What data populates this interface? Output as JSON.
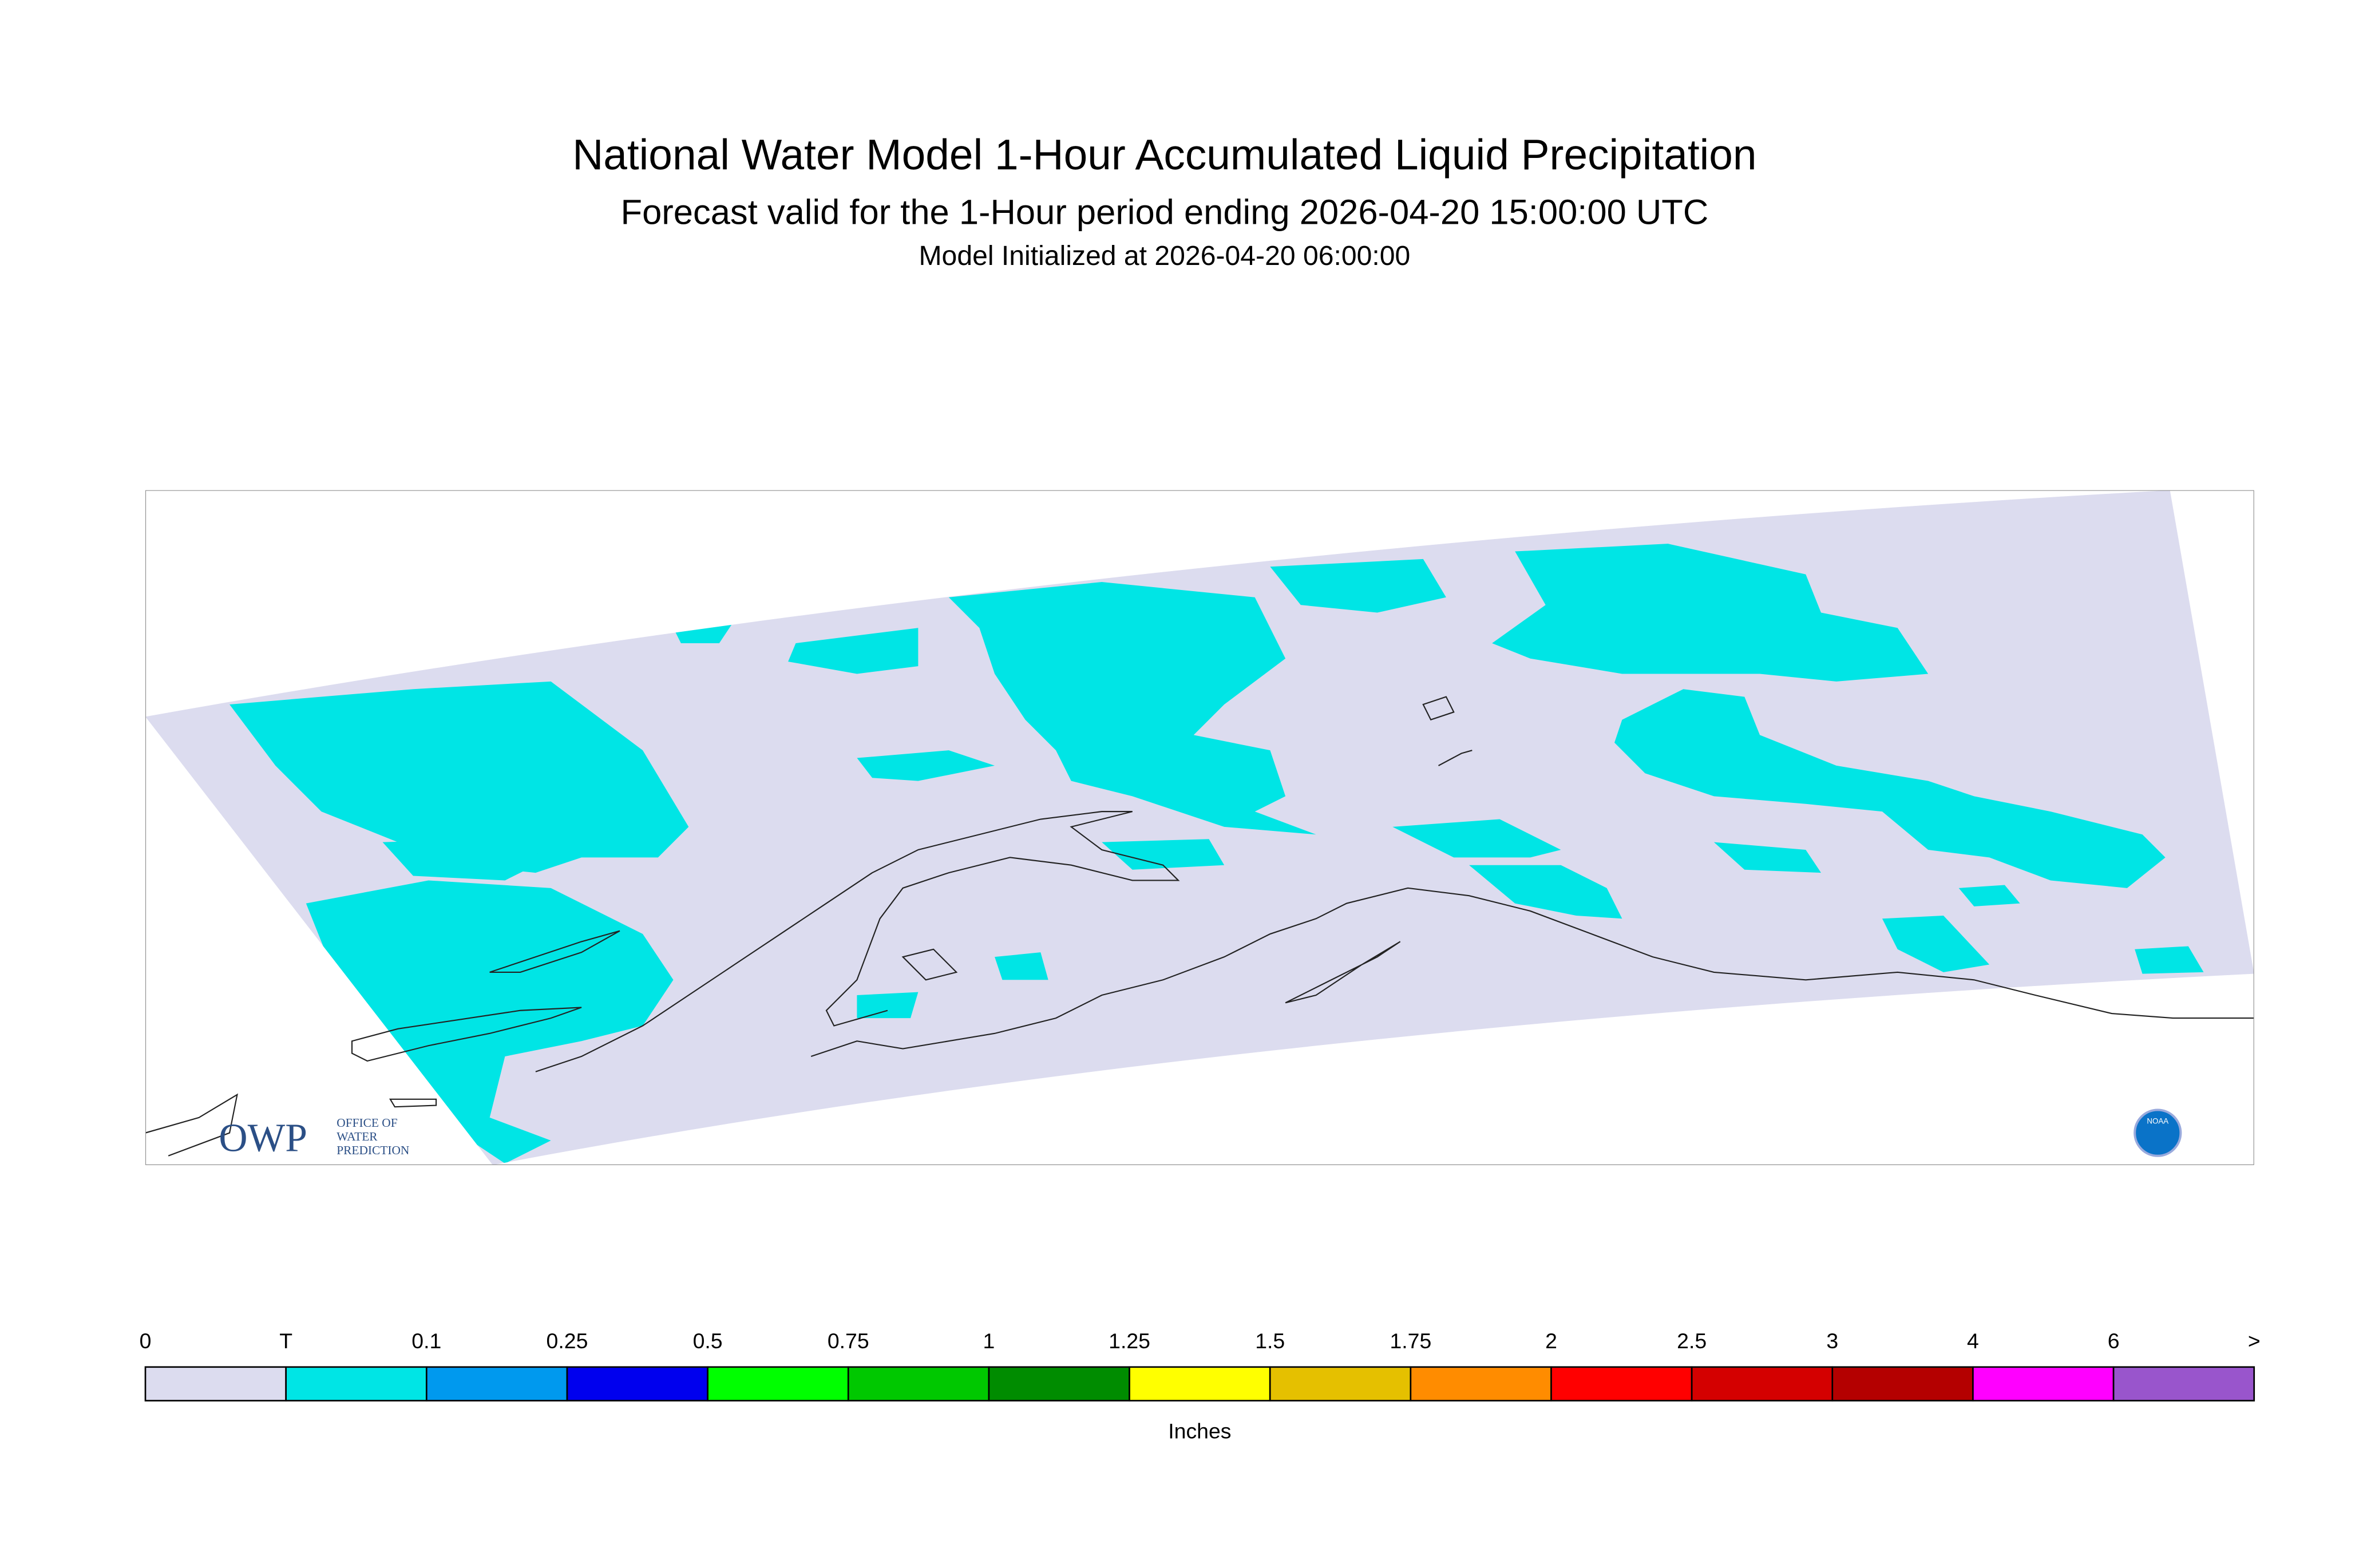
{
  "header": {
    "title": "National Water Model 1-Hour Accumulated Liquid Precipitation",
    "subtitle": "Forecast valid for the 1-Hour period ending 2026-04-20 15:00:00 UTC",
    "init": "Model Initialized at 2026-04-20 06:00:00"
  },
  "logos": {
    "owp": "OWP",
    "owp_line1": "OFFICE OF",
    "owp_line2": "WATER",
    "owp_line3": "PREDICTION",
    "noaa": "NOAA"
  },
  "legend": {
    "labels": [
      "0",
      "T",
      "0.1",
      "0.25",
      "0.5",
      "0.75",
      "1",
      "1.25",
      "1.5",
      "1.75",
      "2",
      "2.5",
      "3",
      "4",
      "6",
      ">"
    ],
    "colors": [
      "#dcdcef",
      "#00e5e5",
      "#0099ee",
      "#0000ee",
      "#00ff00",
      "#00c800",
      "#008c00",
      "#ffff00",
      "#e5c000",
      "#ff8c00",
      "#ff0000",
      "#d40000",
      "#b40000",
      "#ff00ff",
      "#9955cc"
    ],
    "unit": "Inches"
  }
}
